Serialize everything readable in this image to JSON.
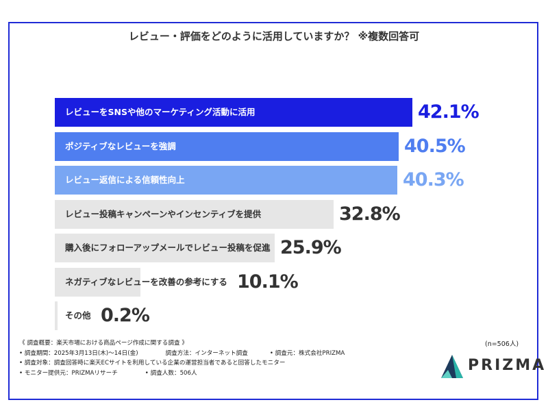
{
  "chart_data": {
    "type": "bar",
    "orientation": "horizontal",
    "title": "レビュー・評価をどのように活用していますか？ ※複数回答可",
    "categories": [
      "レビューをSNSや他のマーケティング活動に活用",
      "ポジティブなレビューを強調",
      "レビュー返信による信頼性向上",
      "レビュー投稿キャンペーンやインセンティブを提供",
      "購入後にフォローアップメールでレビュー投稿を促進",
      "ネガティブなレビューを改善の参考にする",
      "その他"
    ],
    "values": [
      42.1,
      40.5,
      40.3,
      32.8,
      25.9,
      10.1,
      0.2
    ],
    "value_labels": [
      "42.1%",
      "40.5%",
      "40.3%",
      "32.8%",
      "25.9%",
      "10.1%",
      "0.2%"
    ],
    "bar_colors": [
      "#1a1ee0",
      "#4f7ef0",
      "#79a6f3",
      "#e6e6e6",
      "#e6e6e6",
      "#e6e6e6",
      "#e6e6e6"
    ],
    "label_colors": [
      "#ffffff",
      "#ffffff",
      "#ffffff",
      "#333333",
      "#333333",
      "#333333",
      "#333333"
    ],
    "value_colors": [
      "#1a1ee0",
      "#4f7ef0",
      "#79a6f3",
      "#333333",
      "#333333",
      "#333333",
      "#333333"
    ],
    "xlim": [
      0,
      42.1
    ],
    "grid": false,
    "legend": "none"
  },
  "notes": {
    "line1": "《 調査概要：楽天市場における商品ページ作成に関する調査 》",
    "period": "• 調査期間：2025年3月13日(木)〜14日(金)",
    "method": "調査方法：インターネット調査",
    "org": "• 調査元：株式会社PRIZMA",
    "target": "• 調査対象：調査回答時に楽天ECサイトを利用している企業の運営担当者であると回答したモニター",
    "provider": "• モニター提供元：PRIZMAリサーチ",
    "count": "• 調査人数：506人"
  },
  "sample_size": "(n=506人)",
  "brand": {
    "name": "PRIZMA",
    "accent": "#1f2bd6",
    "teal": "#2bb3a8",
    "dark": "#1d3a5c"
  }
}
